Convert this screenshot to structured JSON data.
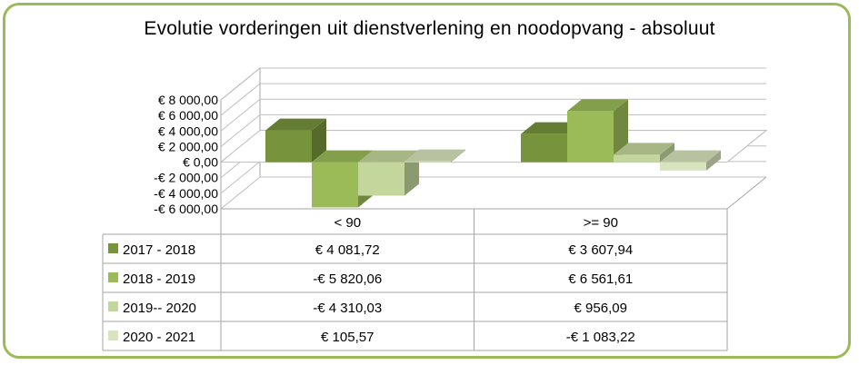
{
  "chart_data": {
    "type": "bar",
    "title": "Evolutie vorderingen uit dienstverlening en noodopvang - absoluut",
    "categories": [
      "< 90",
      ">= 90"
    ],
    "series": [
      {
        "name": "2017 - 2018",
        "values": [
          4081.72,
          3607.94
        ],
        "display": [
          "€ 4 081,72",
          "€ 3 607,94"
        ],
        "color": "#77933c"
      },
      {
        "name": "2018 - 2019",
        "values": [
          -5820.06,
          6561.61
        ],
        "display": [
          "-€ 5 820,06",
          "€ 6 561,61"
        ],
        "color": "#9bbb59"
      },
      {
        "name": "2019-- 2020",
        "values": [
          -4310.03,
          956.09
        ],
        "display": [
          "-€ 4 310,03",
          "€  956,09"
        ],
        "color": "#c3d69b"
      },
      {
        "name": "2020 - 2021",
        "values": [
          105.57,
          -1083.22
        ],
        "display": [
          "€  105,57",
          "-€ 1 083,22"
        ],
        "color": "#d7e4bd"
      }
    ],
    "y_ticks": [
      8000,
      6000,
      4000,
      2000,
      0,
      -2000,
      -4000,
      -6000
    ],
    "y_tick_labels": [
      "€ 8 000,00",
      "€ 6 000,00",
      "€ 4 000,00",
      "€ 2 000,00",
      "€ 0,00",
      "-€ 2 000,00",
      "-€ 4 000,00",
      "-€ 6 000,00"
    ],
    "ylim": [
      -6000,
      8000
    ],
    "grid": true,
    "data_table": true
  }
}
